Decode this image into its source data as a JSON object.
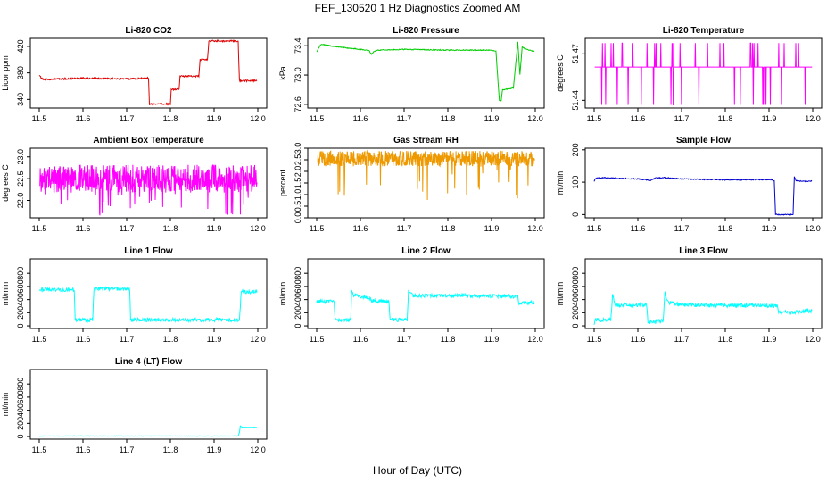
{
  "figure": {
    "title": "FEF_130520  1 Hz Diagnostics Zoomed AM",
    "xlabel": "Hour of Day (UTC)"
  },
  "chart_data": [
    {
      "type": "line",
      "title": "Li-820 CO2",
      "ylabel": "Licor ppm",
      "color": "#dd0000",
      "xlim": [
        11.5,
        12.0
      ],
      "ylim": [
        327,
        432
      ],
      "yticks": [
        340,
        380,
        420
      ],
      "ytick_labels": [
        "340",
        "380",
        "420"
      ],
      "noise": 1.2,
      "x": [
        11.5,
        11.505,
        11.512,
        11.6,
        11.7,
        11.75,
        11.752,
        11.8,
        11.802,
        11.82,
        11.822,
        11.865,
        11.868,
        11.885,
        11.888,
        11.955,
        11.958,
        11.998
      ],
      "y": [
        377,
        372,
        370,
        372,
        371,
        372,
        333,
        333,
        355,
        355,
        375,
        375,
        400,
        400,
        428,
        428,
        368,
        368
      ]
    },
    {
      "type": "line",
      "title": "Li-820 Pressure",
      "ylabel": "kPa",
      "color": "#00cc00",
      "xlim": [
        11.5,
        12.0
      ],
      "ylim": [
        72.55,
        73.5
      ],
      "yticks": [
        72.6,
        73.0,
        73.4
      ],
      "ytick_labels": [
        "72.6",
        "73.0",
        "73.4"
      ],
      "noise": 0.006,
      "x": [
        11.5,
        11.51,
        11.53,
        11.57,
        11.6,
        11.62,
        11.625,
        11.63,
        11.64,
        11.7,
        11.8,
        11.9,
        11.91,
        11.915,
        11.918,
        11.922,
        11.925,
        11.95,
        11.96,
        11.965,
        11.97,
        11.98,
        11.998
      ],
      "y": [
        73.32,
        73.42,
        73.4,
        73.37,
        73.35,
        73.33,
        73.28,
        73.32,
        73.34,
        73.35,
        73.34,
        73.34,
        73.33,
        72.9,
        72.65,
        72.65,
        72.8,
        72.82,
        73.45,
        73.0,
        73.38,
        73.35,
        73.32
      ]
    },
    {
      "type": "line",
      "title": "Li-820 Temperature",
      "ylabel": "degrees C",
      "color": "#ff00ff",
      "xlim": [
        11.5,
        12.0
      ],
      "ylim": [
        51.435,
        51.48
      ],
      "yticks": [
        51.44,
        51.47
      ],
      "ytick_labels": [
        "51.44",
        "51.47"
      ],
      "pattern": "binary",
      "base": 51.4615,
      "upper": 51.477,
      "lower": 51.437,
      "spike_count": 48,
      "seed": 11
    },
    {
      "type": "line",
      "title": "Ambient Box Temperature",
      "ylabel": "degrees C",
      "color": "#ff00ff",
      "xlim": [
        11.5,
        12.0
      ],
      "ylim": [
        21.6,
        23.2
      ],
      "yticks": [
        22.0,
        22.5,
        23.0
      ],
      "ytick_labels": [
        "22.0",
        "22.5",
        "23.0"
      ],
      "pattern": "band",
      "center": 22.5,
      "amp": 0.32,
      "spike": 0.85,
      "n": 700,
      "seed": 3
    },
    {
      "type": "line",
      "title": "Gas Stream RH",
      "ylabel": "percent",
      "color": "#ee9900",
      "xlim": [
        11.5,
        12.0
      ],
      "ylim": [
        0.0,
        3.0
      ],
      "yticks": [
        0.0,
        0.5,
        1.0,
        1.5,
        2.0,
        2.5,
        3.0
      ],
      "ytick_labels": [
        "0.0",
        "0.5",
        "1.0",
        "1.5",
        "2.0",
        "2.5",
        "3.0"
      ],
      "pattern": "band",
      "center": 2.55,
      "amp": 0.33,
      "spike": 1.8,
      "n": 700,
      "seed": 5
    },
    {
      "type": "line",
      "title": "Sample Flow",
      "ylabel": "ml/min",
      "color": "#0000cc",
      "xlim": [
        11.5,
        12.0
      ],
      "ylim": [
        -10,
        205
      ],
      "yticks": [
        0,
        100,
        200
      ],
      "ytick_labels": [
        "0",
        "100",
        "200"
      ],
      "noise": 1.5,
      "x": [
        11.5,
        11.503,
        11.52,
        11.6,
        11.63,
        11.64,
        11.66,
        11.7,
        11.8,
        11.905,
        11.912,
        11.915,
        11.955,
        11.958,
        11.962,
        11.975,
        11.998
      ],
      "y": [
        103,
        112,
        114,
        110,
        106,
        113,
        114,
        110,
        107,
        108,
        103,
        0,
        0,
        116,
        105,
        103,
        103
      ]
    },
    {
      "type": "line",
      "title": "Line 1 Flow",
      "ylabel": "ml/min",
      "color": "#00ffff",
      "xlim": [
        11.5,
        12.0
      ],
      "ylim": [
        -40,
        1020
      ],
      "yticks": [
        0,
        200,
        400,
        600,
        800
      ],
      "ytick_labels": [
        "0",
        "200",
        "400",
        "600",
        "800"
      ],
      "noise": 28,
      "x": [
        11.5,
        11.58,
        11.582,
        11.622,
        11.625,
        11.707,
        11.709,
        11.958,
        11.962,
        11.998
      ],
      "y": [
        560,
        545,
        90,
        90,
        570,
        560,
        90,
        90,
        520,
        510
      ]
    },
    {
      "type": "line",
      "title": "Line 2 Flow",
      "ylabel": "ml/min",
      "color": "#00ffff",
      "xlim": [
        11.5,
        12.0
      ],
      "ylim": [
        -40,
        1020
      ],
      "yticks": [
        0,
        200,
        400,
        600,
        800
      ],
      "ytick_labels": [
        "0",
        "200",
        "400",
        "600",
        "800"
      ],
      "noise": 28,
      "x": [
        11.5,
        11.54,
        11.542,
        11.578,
        11.58,
        11.585,
        11.62,
        11.625,
        11.665,
        11.668,
        11.707,
        11.71,
        11.72,
        11.96,
        11.962,
        11.998
      ],
      "y": [
        370,
        365,
        90,
        90,
        520,
        470,
        430,
        380,
        370,
        90,
        90,
        530,
        460,
        450,
        350,
        355
      ]
    },
    {
      "type": "line",
      "title": "Line 3 Flow",
      "ylabel": "ml/min",
      "color": "#00ffff",
      "xlim": [
        11.5,
        12.0
      ],
      "ylim": [
        -40,
        1020
      ],
      "yticks": [
        0,
        200,
        400,
        600,
        800
      ],
      "ytick_labels": [
        "0",
        "200",
        "400",
        "600",
        "800"
      ],
      "noise": 28,
      "x": [
        11.5,
        11.503,
        11.538,
        11.542,
        11.548,
        11.62,
        11.623,
        11.658,
        11.662,
        11.668,
        11.7,
        11.8,
        11.9,
        11.92,
        11.922,
        11.998
      ],
      "y": [
        30,
        90,
        90,
        460,
        320,
        320,
        50,
        80,
        510,
        360,
        320,
        310,
        310,
        300,
        200,
        230
      ]
    },
    {
      "type": "line",
      "title": "Line 4 (LT) Flow",
      "ylabel": "ml/min",
      "color": "#00ffff",
      "xlim": [
        11.5,
        12.0
      ],
      "ylim": [
        -40,
        1020
      ],
      "yticks": [
        0,
        200,
        400,
        600,
        800
      ],
      "ytick_labels": [
        "0",
        "200",
        "400",
        "600",
        "800"
      ],
      "noise": 3,
      "x": [
        11.5,
        11.955,
        11.958,
        11.96,
        11.965,
        11.998
      ],
      "y": [
        8,
        8,
        60,
        160,
        140,
        140
      ]
    }
  ],
  "xtick_labels": [
    "11.5",
    "11.6",
    "11.7",
    "11.8",
    "11.9",
    "12.0"
  ],
  "xticks": [
    11.5,
    11.6,
    11.7,
    11.8,
    11.9,
    12.0
  ]
}
